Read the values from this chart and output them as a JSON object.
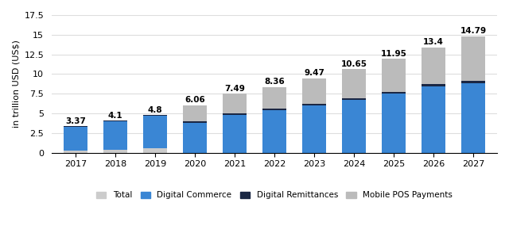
{
  "years": [
    2017,
    2018,
    2019,
    2020,
    2021,
    2022,
    2023,
    2024,
    2025,
    2026,
    2027
  ],
  "totals": [
    3.37,
    4.1,
    4.8,
    6.06,
    7.49,
    8.36,
    9.47,
    10.65,
    11.95,
    13.4,
    14.79
  ],
  "digital_commerce": [
    3.0,
    3.6,
    4.1,
    3.85,
    4.85,
    5.45,
    6.05,
    6.7,
    7.5,
    8.45,
    8.85
  ],
  "digital_remittances": [
    0.07,
    0.1,
    0.12,
    0.13,
    0.15,
    0.17,
    0.19,
    0.22,
    0.24,
    0.27,
    0.3
  ],
  "mobile_pos": [
    0.0,
    0.0,
    0.0,
    2.08,
    2.49,
    2.74,
    3.23,
    3.73,
    4.21,
    4.68,
    5.64
  ],
  "total_base": [
    0.3,
    0.4,
    0.58,
    0.0,
    0.0,
    0.0,
    0.0,
    0.0,
    0.0,
    0.0,
    0.0
  ],
  "color_digital_commerce": "#3a86d4",
  "color_digital_remittances": "#1a2744",
  "color_mobile_pos": "#bbbbbb",
  "color_total_base": "#cccccc",
  "ylabel": "in trillion USD (US$)",
  "ylim": [
    0,
    17.5
  ],
  "yticks": [
    0,
    2.5,
    5,
    7.5,
    10,
    12.5,
    15,
    17.5
  ],
  "bg_color": "#ffffff",
  "grid_color": "#dddddd",
  "label_fontsize": 7.5,
  "bar_width": 0.6
}
